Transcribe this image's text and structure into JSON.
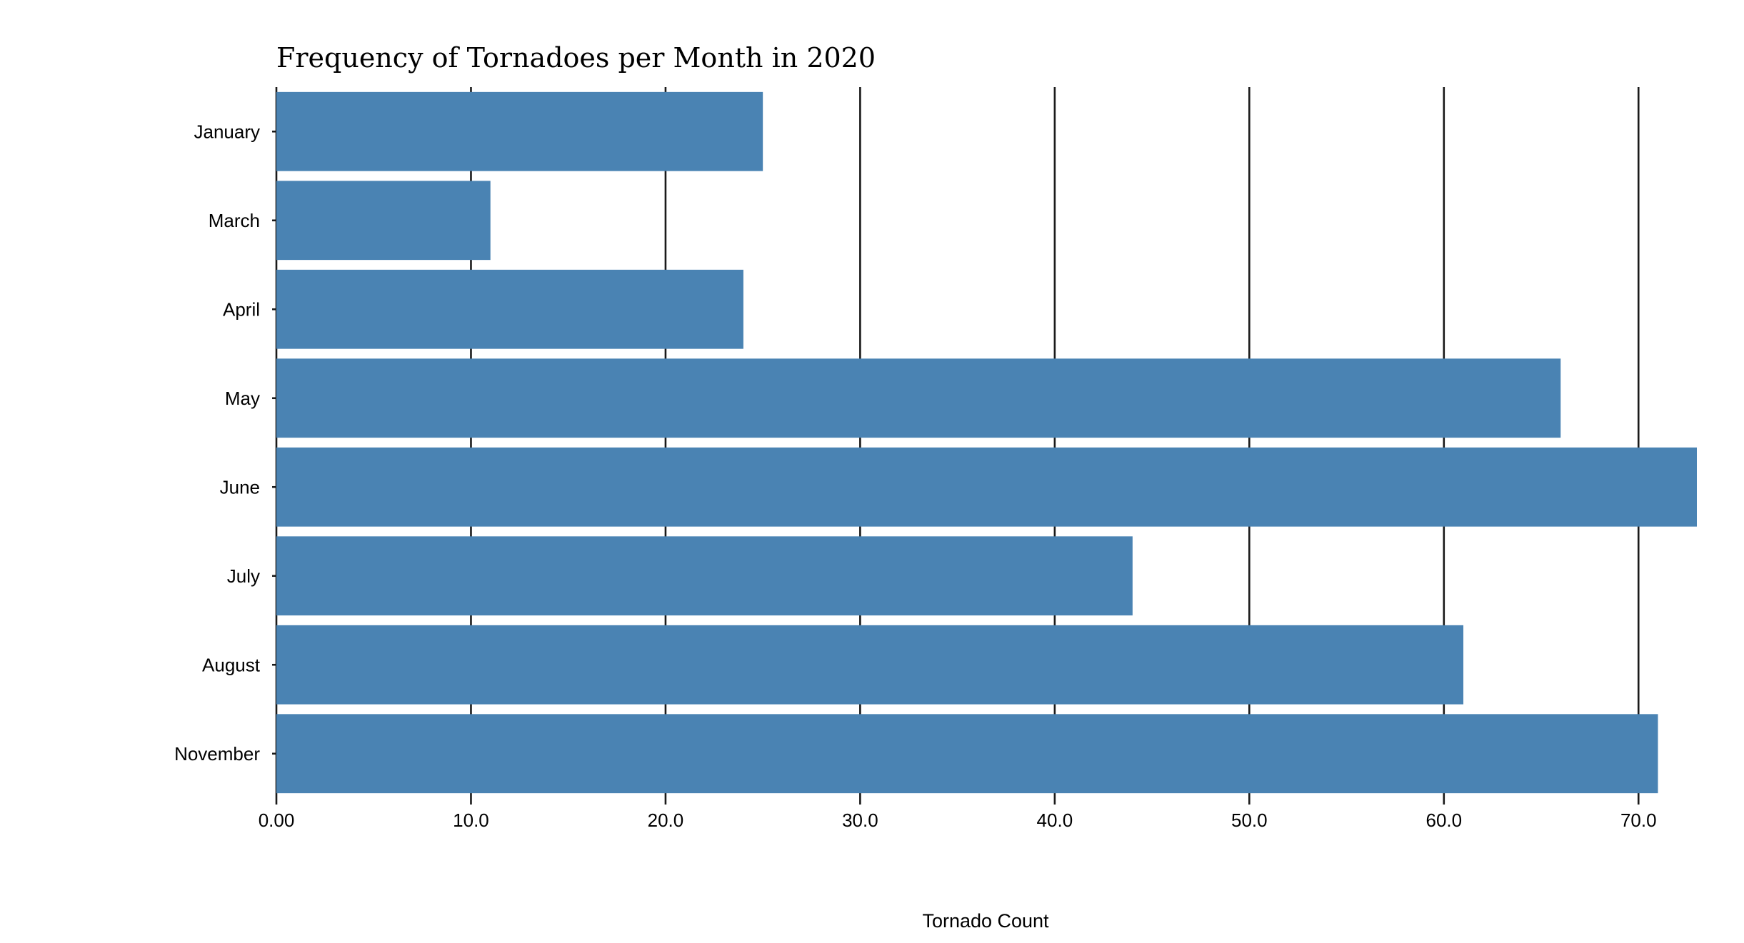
{
  "chart_data": {
    "type": "bar",
    "orientation": "horizontal",
    "title": "Frequency of Tornadoes per Month in 2020",
    "xlabel": "Tornado Count",
    "ylabel": "",
    "categories": [
      "January",
      "March",
      "April",
      "May",
      "June",
      "July",
      "August",
      "November"
    ],
    "values": [
      25,
      11,
      24,
      66,
      73,
      44,
      61,
      71
    ],
    "xlim": [
      0,
      73
    ],
    "xticks": [
      0,
      10,
      20,
      30,
      40,
      50,
      60,
      70
    ],
    "xtick_labels": [
      "0.00",
      "10.0",
      "20.0",
      "30.0",
      "40.0",
      "50.0",
      "60.0",
      "70.0"
    ],
    "grid": "vertical",
    "legend": "none",
    "bar_color": "#4a83b3",
    "grid_color": "#1a1a1a"
  }
}
